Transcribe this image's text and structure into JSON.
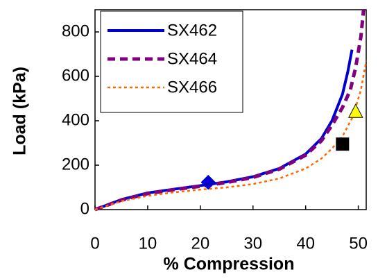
{
  "chart_data": {
    "type": "line",
    "x_label": "% Compression",
    "y_label": "Load (kPa)",
    "xlim": [
      0,
      51.5
    ],
    "ylim": [
      0,
      900
    ],
    "xticks": [
      0,
      10,
      20,
      30,
      40,
      50
    ],
    "yticks": [
      0,
      200,
      400,
      600,
      800
    ],
    "grid": false,
    "legend": "upper left",
    "series": [
      {
        "name": "SX462",
        "color": "#0000cc",
        "style": "solid",
        "x": [
          0,
          5,
          10,
          15,
          20,
          25,
          30,
          35,
          40,
          43,
          45,
          47,
          48,
          48.8
        ],
        "values": [
          0,
          45,
          75,
          92,
          108,
          125,
          148,
          185,
          250,
          320,
          400,
          520,
          620,
          720
        ]
      },
      {
        "name": "SX464",
        "color": "#800080",
        "style": "dashed",
        "x": [
          0,
          5,
          10,
          15,
          20,
          25,
          30,
          35,
          40,
          43,
          45,
          47,
          48.5,
          49.5,
          50.5,
          51
        ],
        "values": [
          0,
          43,
          72,
          90,
          105,
          122,
          145,
          182,
          245,
          310,
          380,
          460,
          540,
          640,
          780,
          900
        ]
      },
      {
        "name": "SX466",
        "color": "#ff6600",
        "style": "dotted",
        "x": [
          0,
          5,
          10,
          15,
          20,
          25,
          30,
          35,
          40,
          43,
          45,
          47,
          49,
          50.5,
          51.5
        ],
        "values": [
          0,
          38,
          62,
          78,
          90,
          100,
          115,
          140,
          185,
          230,
          275,
          330,
          420,
          540,
          670
        ]
      }
    ],
    "markers": [
      {
        "shape": "diamond",
        "color": "#0000cc",
        "x": 21.5,
        "y": 123
      },
      {
        "shape": "square",
        "color": "#000000",
        "x": 47,
        "y": 295
      },
      {
        "shape": "triangle",
        "color": "#ffff00",
        "x": 49.5,
        "y": 440
      }
    ]
  }
}
